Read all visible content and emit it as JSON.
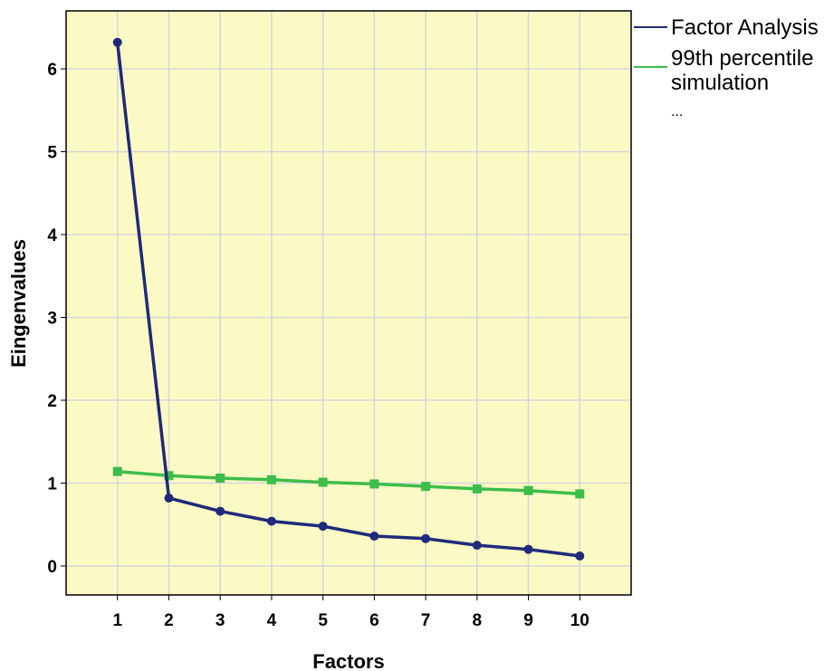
{
  "chart_data": {
    "type": "line",
    "xlabel": "Factors",
    "ylabel": "Eingenvalues",
    "x": [
      1,
      2,
      3,
      4,
      5,
      6,
      7,
      8,
      9,
      10
    ],
    "x_ticks": [
      "1",
      "2",
      "3",
      "4",
      "5",
      "6",
      "7",
      "8",
      "9",
      "10"
    ],
    "y_ticks": [
      "0",
      "1",
      "2",
      "3",
      "4",
      "5",
      "6"
    ],
    "ylim": [
      -0.35,
      6.7
    ],
    "xlim": [
      0,
      11
    ],
    "grid": true,
    "plot_background": "#fcfac4",
    "legend_placement": "outside-top-right",
    "legend_more": "...",
    "series": [
      {
        "name": "Factor Analysis",
        "color": "#1f2a7a",
        "marker": "circle",
        "values": [
          6.32,
          0.82,
          0.66,
          0.54,
          0.48,
          0.36,
          0.33,
          0.25,
          0.2,
          0.12
        ]
      },
      {
        "name": "99th percentile simulation",
        "name_lines": [
          "99th percentile",
          "simulation"
        ],
        "color": "#3cbd4a",
        "marker": "square",
        "values": [
          1.14,
          1.09,
          1.06,
          1.04,
          1.01,
          0.99,
          0.96,
          0.93,
          0.91,
          0.87
        ]
      }
    ]
  }
}
